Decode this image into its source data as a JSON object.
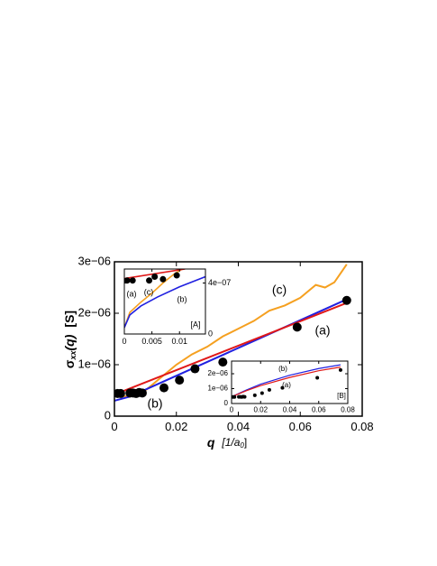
{
  "chart_data": [
    {
      "type": "line",
      "xlabel": [
        "q",
        "[1/a",
        "0",
        "]"
      ],
      "ylabel": [
        "σ",
        "xx",
        "(q)",
        "[S]"
      ],
      "xlim": [
        0,
        0.08
      ],
      "ylim": [
        0,
        3e-06
      ],
      "xticks": [
        0,
        0.02,
        0.04,
        0.06,
        0.08
      ],
      "yticks": [
        0,
        {
          "value": 1e-06,
          "label": "1e−06"
        },
        {
          "value": 2e-06,
          "label": "2e−06"
        },
        {
          "value": 3e-06,
          "label": "3e−06"
        }
      ],
      "series": [
        {
          "color": "#f5a020",
          "x": [
            0,
            0.005,
            0.01,
            0.015,
            0.02,
            0.025,
            0.03,
            0.035,
            0.04,
            0.045,
            0.05,
            0.055,
            0.06,
            0.065,
            0.068,
            0.071,
            0.075
          ],
          "values": [
            4e-07,
            3.8e-07,
            5e-07,
            7.5e-07,
            1e-06,
            1.2e-06,
            1.35e-06,
            1.55e-06,
            1.7e-06,
            1.85e-06,
            2.05e-06,
            2.15e-06,
            2.3e-06,
            2.55e-06,
            2.5e-06,
            2.6e-06,
            2.95e-06
          ]
        },
        {
          "color": "#2020e0",
          "x": [
            0,
            0.005,
            0.075
          ],
          "values": [
            3e-07,
            3.8e-07,
            2.27e-06
          ]
        },
        {
          "color": "#e01818",
          "x": [
            0,
            0.075
          ],
          "values": [
            4.2e-07,
            2.2e-06
          ]
        },
        {
          "color": "#000000",
          "marker": "circle",
          "x": [
            0.001,
            0.002,
            0.005,
            0.006,
            0.007,
            0.008,
            0.009,
            0.016,
            0.021,
            0.026,
            0.035,
            0.059,
            0.075
          ],
          "values": [
            4.4e-07,
            4.4e-07,
            4.5e-07,
            4.5e-07,
            4.4e-07,
            4.6e-07,
            4.5e-07,
            5.5e-07,
            7e-07,
            9.2e-07,
            1.05e-06,
            1.73e-06,
            2.25e-06
          ]
        }
      ],
      "annotations": [
        "(c)",
        "(a)",
        "(b)"
      ]
    },
    {
      "type": "line",
      "xlim": [
        0,
        0.0147
      ],
      "ylim": [
        0,
        5.1e-07
      ],
      "xticks": [
        0,
        0.005,
        0.01
      ],
      "yticks": [
        0,
        {
          "value": 4e-07,
          "label": "4e−07"
        }
      ],
      "series": [
        {
          "color": "#f5a020",
          "x": [
            0,
            0.001,
            0.003,
            0.005,
            0.007,
            0.009,
            0.0105
          ],
          "values": [
            5e-08,
            1.7e-07,
            2.5e-07,
            3.2e-07,
            4e-07,
            4.7e-07,
            5.1e-07
          ]
        },
        {
          "color": "#2020e0",
          "x": [
            0,
            0.001,
            0.003,
            0.006,
            0.01,
            0.0147
          ],
          "values": [
            5e-08,
            1.5e-07,
            2.2e-07,
            2.9e-07,
            3.7e-07,
            4.5e-07
          ]
        },
        {
          "color": "#e01818",
          "x": [
            0,
            0.011
          ],
          "values": [
            4.35e-07,
            5.1e-07
          ]
        },
        {
          "color": "#000000",
          "marker": "circle",
          "x": [
            0.0005,
            0.0015,
            0.0045,
            0.0055,
            0.007,
            0.0095
          ],
          "values": [
            4.2e-07,
            4.2e-07,
            4.2e-07,
            4.5e-07,
            4.3e-07,
            4.6e-07
          ]
        }
      ],
      "annotations": [
        "(a)",
        "(c)",
        "(b)",
        "[A]"
      ]
    },
    {
      "type": "line",
      "xlim": [
        0,
        0.08
      ],
      "ylim": [
        0,
        2.85e-06
      ],
      "xticks": [
        0,
        0.02,
        0.04,
        0.06,
        0.08
      ],
      "yticks": [
        0,
        {
          "value": 1e-06,
          "label": "1e−06"
        },
        {
          "value": 2e-06,
          "label": "2e−06"
        }
      ],
      "series": [
        {
          "color": "#2020e0",
          "x": [
            0,
            0.01,
            0.02,
            0.04,
            0.06,
            0.075
          ],
          "values": [
            4.5e-07,
            9e-07,
            1.3e-06,
            1.9e-06,
            2.35e-06,
            2.6e-06
          ]
        },
        {
          "color": "#e01818",
          "x": [
            0,
            0.01,
            0.02,
            0.04,
            0.06,
            0.075
          ],
          "values": [
            4.5e-07,
            8.5e-07,
            1.2e-06,
            1.75e-06,
            2.2e-06,
            2.45e-06
          ]
        },
        {
          "color": "#000000",
          "marker": "circle",
          "x": [
            0.001,
            0.002,
            0.005,
            0.006,
            0.007,
            0.008,
            0.009,
            0.016,
            0.021,
            0.026,
            0.035,
            0.059,
            0.075
          ],
          "values": [
            4.4e-07,
            4.4e-07,
            4.5e-07,
            4.5e-07,
            4.4e-07,
            4.6e-07,
            4.5e-07,
            5.5e-07,
            7e-07,
            9.2e-07,
            1.05e-06,
            1.73e-06,
            2.25e-06
          ]
        }
      ],
      "annotations": [
        "(b)",
        "(a)",
        "[B]"
      ]
    }
  ]
}
